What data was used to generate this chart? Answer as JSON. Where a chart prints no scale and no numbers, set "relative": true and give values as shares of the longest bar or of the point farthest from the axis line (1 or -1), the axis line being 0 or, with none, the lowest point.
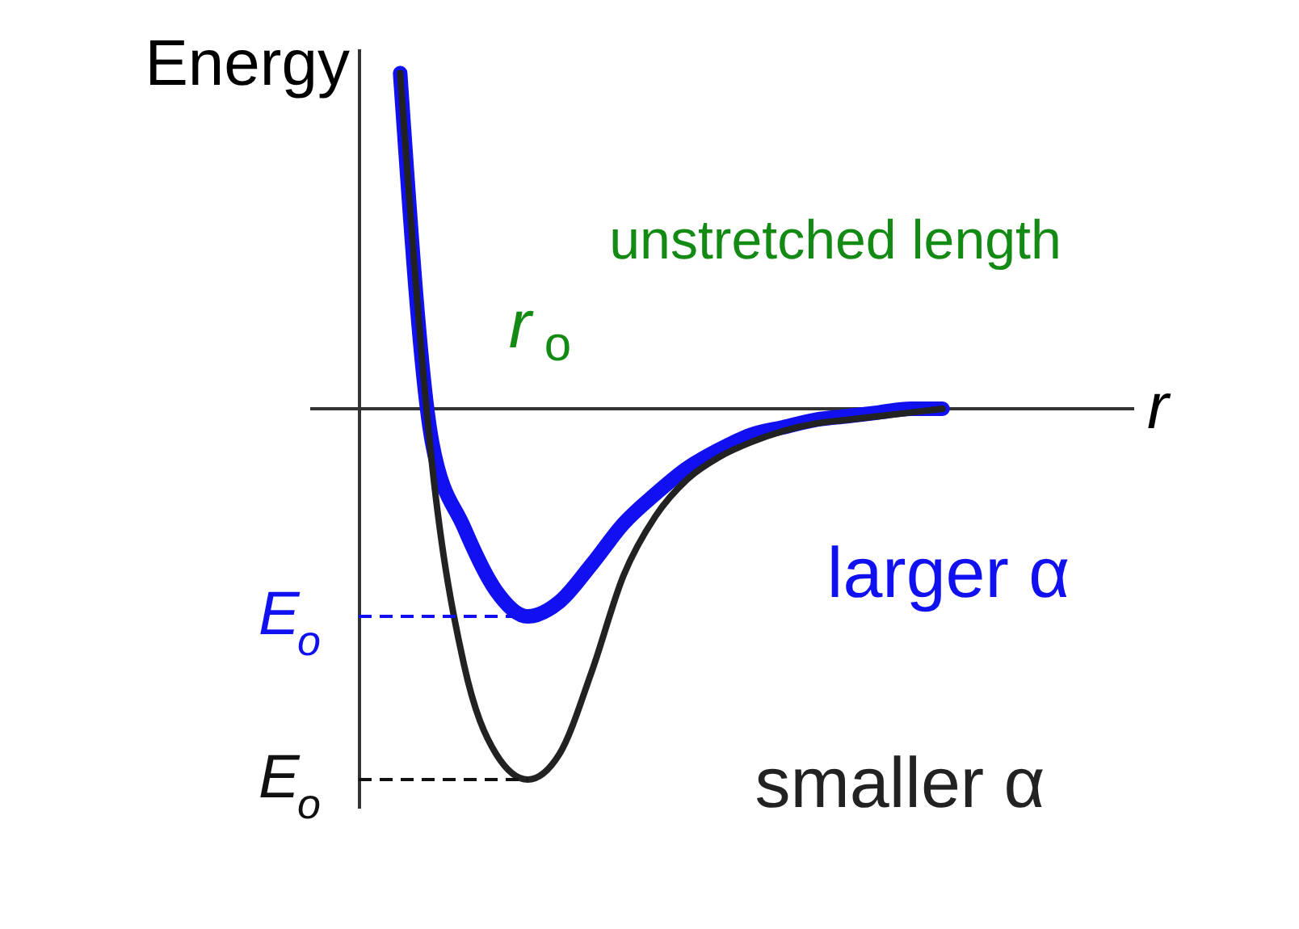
{
  "chart_data": {
    "type": "line",
    "relative": true,
    "xlabel": "r",
    "ylabel": "Energy",
    "categories": [
      null,
      null,
      null,
      null,
      null,
      null,
      null,
      null,
      null,
      null,
      null,
      null,
      null,
      null,
      null,
      null,
      null,
      null
    ],
    "series": [
      {
        "name": "larger α",
        "color": "#1010f0",
        "values": [
          0.905,
          -0.09,
          -0.32,
          -0.49,
          -0.56,
          -0.52,
          -0.42,
          -0.31,
          -0.23,
          -0.16,
          -0.11,
          -0.07,
          -0.05,
          -0.03,
          -0.02,
          -0.01,
          0,
          0
        ]
      },
      {
        "name": "smaller α",
        "color": "#222222",
        "values": [
          0.905,
          -0.15,
          -0.69,
          -0.93,
          -1,
          -0.93,
          -0.71,
          -0.45,
          -0.29,
          -0.19,
          -0.13,
          -0.09,
          -0.06,
          -0.04,
          -0.03,
          -0.02,
          -0.01,
          0
        ]
      }
    ],
    "ref_lines": [
      {
        "axis": "y",
        "value": -0.56,
        "label": "E$_{o}$",
        "color": "#1010f0",
        "line_style": "dashed"
      },
      {
        "axis": "y",
        "value": -1,
        "label": "E$_{o}$",
        "color": "#111111",
        "line_style": "dashed"
      }
    ],
    "annotations": [
      "unstretched length",
      "r$_{o}$"
    ],
    "line_style": "solid",
    "marker": "none",
    "grid": false
  }
}
